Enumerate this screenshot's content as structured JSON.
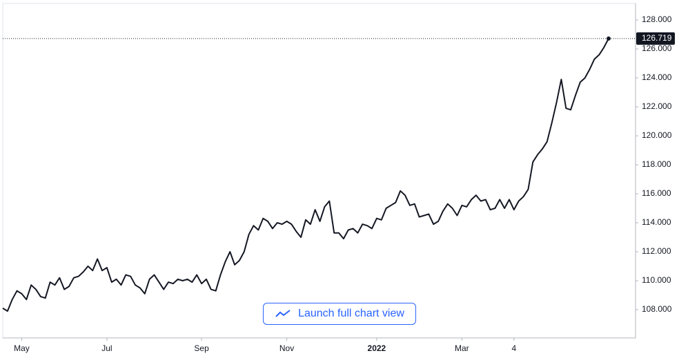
{
  "chart_data": {
    "type": "line",
    "color": "#131722",
    "values": [
      108.1,
      107.9,
      108.7,
      109.3,
      109.1,
      108.7,
      109.7,
      109.4,
      108.9,
      108.8,
      109.9,
      109.7,
      110.2,
      109.4,
      109.6,
      110.2,
      110.3,
      110.6,
      111.0,
      110.7,
      111.5,
      110.7,
      110.9,
      109.9,
      110.1,
      109.7,
      110.4,
      110.3,
      109.7,
      109.5,
      109.1,
      110.1,
      110.4,
      109.9,
      109.4,
      109.9,
      109.8,
      110.1,
      110.0,
      110.1,
      109.9,
      110.4,
      109.8,
      110.1,
      109.4,
      109.3,
      110.4,
      111.3,
      112.0,
      111.1,
      111.4,
      112.0,
      113.2,
      113.8,
      113.5,
      114.3,
      114.1,
      113.6,
      114.0,
      113.9,
      114.1,
      113.9,
      113.4,
      113.0,
      114.2,
      113.9,
      114.9,
      114.1,
      115.1,
      115.5,
      113.3,
      113.3,
      112.9,
      113.5,
      113.6,
      113.3,
      113.9,
      113.8,
      113.6,
      114.3,
      114.2,
      115.0,
      115.2,
      115.4,
      116.2,
      115.9,
      115.2,
      115.3,
      114.4,
      114.5,
      114.6,
      113.9,
      114.1,
      114.8,
      115.3,
      115.0,
      114.5,
      115.2,
      115.1,
      115.6,
      115.9,
      115.5,
      115.6,
      114.9,
      115.0,
      115.6,
      115.0,
      115.6,
      114.9,
      115.5,
      115.8,
      116.3,
      118.2,
      118.7,
      119.1,
      119.6,
      120.9,
      122.3,
      123.9,
      121.9,
      121.8,
      122.8,
      123.7,
      124.0,
      124.6,
      125.3,
      125.6,
      126.1,
      126.719
    ],
    "last_price_label": "126.719",
    "xticks": [
      {
        "value": 4,
        "label": "May"
      },
      {
        "value": 22,
        "label": "Jul"
      },
      {
        "value": 42,
        "label": "Sep"
      },
      {
        "value": 60,
        "label": "Nov"
      },
      {
        "value": 79,
        "label": "2022"
      },
      {
        "value": 97,
        "label": "Mar"
      },
      {
        "value": 108,
        "label": "4"
      }
    ],
    "ylim": [
      106.05,
      129.14
    ],
    "yticks": [
      {
        "value": 108,
        "label": "108.000"
      },
      {
        "value": 110,
        "label": "110.000"
      },
      {
        "value": 112,
        "label": "112.000"
      },
      {
        "value": 114,
        "label": "114.000"
      },
      {
        "value": 116,
        "label": "116.000"
      },
      {
        "value": 118,
        "label": "118.000"
      },
      {
        "value": 120,
        "label": "120.000"
      },
      {
        "value": 122,
        "label": "122.000"
      },
      {
        "value": 124,
        "label": "124.000"
      },
      {
        "value": 126,
        "label": "126.000"
      },
      {
        "value": 128,
        "label": "128.000"
      }
    ]
  },
  "ui": {
    "button_label": "Launch full chart view"
  }
}
